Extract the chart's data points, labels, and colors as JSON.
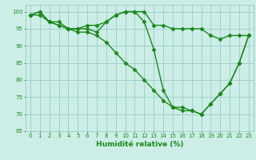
{
  "series": [
    {
      "x": [
        0,
        1,
        2,
        3,
        4,
        5,
        6,
        7,
        8,
        9,
        10,
        11,
        12,
        13,
        14,
        15,
        16,
        17,
        18,
        19,
        20,
        21,
        22,
        23
      ],
      "y": [
        99,
        100,
        97,
        97,
        95,
        95,
        96,
        96,
        97,
        99,
        100,
        100,
        100,
        96,
        96,
        95,
        95,
        95,
        95,
        93,
        92,
        93,
        93,
        93
      ]
    },
    {
      "x": [
        0,
        1,
        2,
        3,
        4,
        5,
        6,
        7,
        8,
        9,
        10,
        11,
        12,
        13,
        14,
        15,
        16,
        17,
        18,
        19,
        20,
        21,
        22,
        23
      ],
      "y": [
        99,
        100,
        97,
        96,
        95,
        95,
        95,
        94,
        97,
        99,
        100,
        100,
        97,
        89,
        77,
        72,
        72,
        71,
        70,
        73,
        76,
        79,
        85,
        93
      ]
    },
    {
      "x": [
        0,
        1,
        2,
        3,
        4,
        5,
        6,
        7,
        8,
        9,
        10,
        11,
        12,
        13,
        14,
        15,
        16,
        17,
        18,
        19,
        20,
        21,
        22,
        23
      ],
      "y": [
        99,
        99,
        97,
        96,
        95,
        94,
        94,
        93,
        91,
        88,
        85,
        83,
        80,
        77,
        74,
        72,
        71,
        71,
        70,
        73,
        76,
        79,
        85,
        93
      ]
    }
  ],
  "xlabel": "Humidité relative (%)",
  "xlim": [
    -0.5,
    23.5
  ],
  "ylim": [
    65,
    102
  ],
  "yticks": [
    65,
    70,
    75,
    80,
    85,
    90,
    95,
    100
  ],
  "xtick_labels": [
    "0",
    "1",
    "2",
    "3",
    "4",
    "5",
    "6",
    "7",
    "8",
    "9",
    "10",
    "11",
    "12",
    "13",
    "14",
    "15",
    "16",
    "17",
    "18",
    "19",
    "20",
    "21",
    "22",
    "23"
  ],
  "bg_color": "#cceee6",
  "grid_color": "#99cccc",
  "line_color": "#1a8a1a",
  "tick_color": "#1a8a1a",
  "label_color": "#1a8a1a",
  "xlabel_fontsize": 6.5,
  "tick_fontsize": 5.0,
  "linewidth": 1.0,
  "markersize": 2.5
}
